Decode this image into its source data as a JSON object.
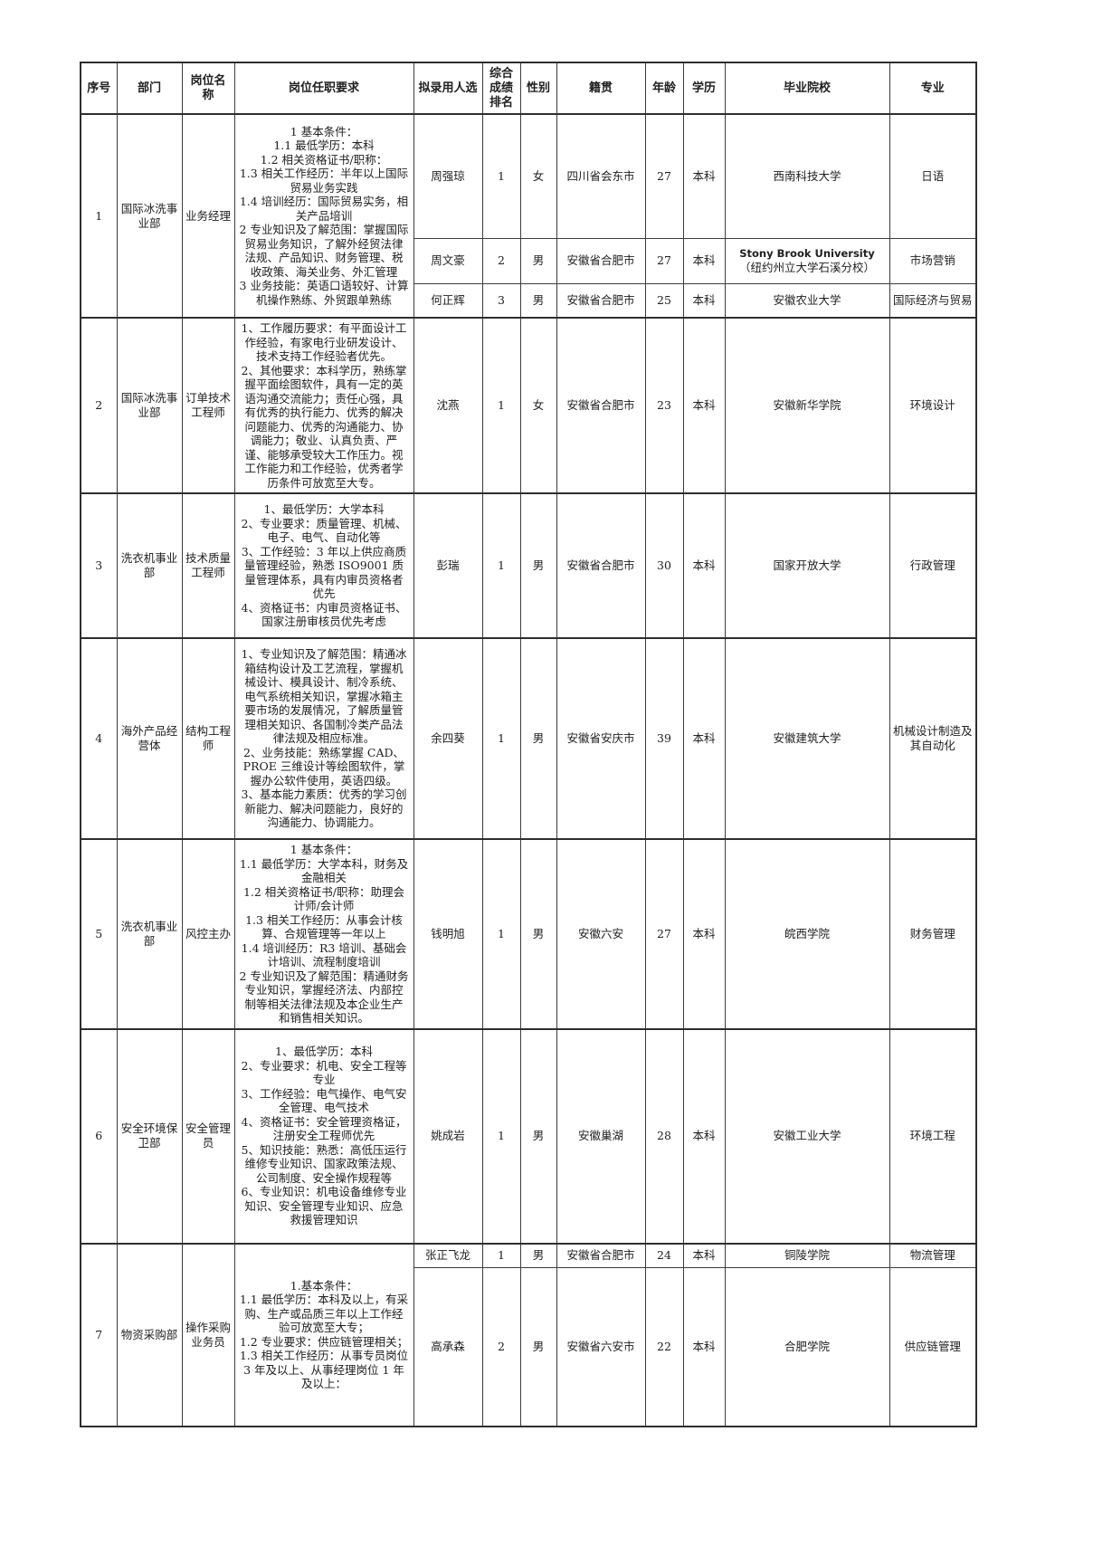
{
  "table": {
    "headers": [
      "序号",
      "部门",
      "岗位名称",
      "岗位任职要求",
      "拟录用人选",
      "综合成绩排名",
      "性别",
      "籍贯",
      "年龄",
      "学历",
      "毕业院校",
      "专业"
    ],
    "rows": [
      {
        "no": "1",
        "department": "国际冰洗事业部",
        "position": "业务经理",
        "requirements": "1 基本条件：\n1.1 最低学历：本科\n1.2 相关资格证书/职称：\n1.3 相关工作经历：半年以上国际贸易业务实践\n1.4 培训经历：国际贸易实务，相关产品培训\n2 专业知识及了解范围：掌握国际贸易业务知识，了解外经贸法律法规、产品知识、财务管理、税收政策、海关业务、外汇管理\n3 业务技能：英语口语较好、计算机操作熟练、外贸跟单熟练",
        "candidates": [
          {
            "name": "周强琼",
            "rank": "1",
            "gender": "女",
            "hometown": "四川省会东市",
            "age": "27",
            "degree": "本科",
            "school": "西南科技大学",
            "major": "日语"
          },
          {
            "name": "周文豪",
            "rank": "2",
            "gender": "男",
            "hometown": "安徽省合肥市",
            "age": "27",
            "degree": "本科",
            "school": "Stony Brook University\n（纽约州立大学石溪分校）",
            "major": "市场营销"
          },
          {
            "name": "何正辉",
            "rank": "3",
            "gender": "男",
            "hometown": "安徽省合肥市",
            "age": "25",
            "degree": "本科",
            "school": "安徽农业大学",
            "major": "国际经济与贸易"
          }
        ]
      },
      {
        "no": "2",
        "department": "国际冰洗事业部",
        "position": "订单技术工程师",
        "requirements": "1、工作履历要求：有平面设计工作经验，有家电行业研发设计、技术支持工作经验者优先。\n2、其他要求：本科学历，熟练掌握平面绘图软件，具有一定的英语沟通交流能力；责任心强，具有优秀的执行能力、优秀的解决问题能力、优秀的沟通能力、协调能力；敬业、认真负责、严谨、能够承受较大工作压力。视工作能力和工作经验，优秀者学历条件可放宽至大专。",
        "candidates": [
          {
            "name": "沈燕",
            "rank": "1",
            "gender": "女",
            "hometown": "安徽省合肥市",
            "age": "23",
            "degree": "本科",
            "school": "安徽新华学院",
            "major": "环境设计"
          }
        ]
      },
      {
        "no": "3",
        "department": "洗衣机事业部",
        "position": "技术质量工程师",
        "requirements": "1、最低学历：大学本科\n2、专业要求：质量管理、机械、电子、电气、自动化等\n3、工作经验：3 年以上供应商质量管理经验，熟悉 ISO9001 质量管理体系，具有内审员资格者优先\n4、资格证书：内审员资格证书、国家注册审核员优先考虑",
        "candidates": [
          {
            "name": "彭瑞",
            "rank": "1",
            "gender": "男",
            "hometown": "安徽省合肥市",
            "age": "30",
            "degree": "本科",
            "school": "国家开放大学",
            "major": "行政管理"
          }
        ]
      },
      {
        "no": "4",
        "department": "海外产品经营体",
        "position": "结构工程师",
        "requirements": "1、专业知识及了解范围：精通冰箱结构设计及工艺流程，掌握机械设计、模具设计、制冷系统、电气系统相关知识，掌握冰箱主要市场的发展情况，了解质量管理相关知识、各国制冷类产品法律法规及相应标准。\n2、业务技能：熟练掌握 CAD、PROE 三维设计等绘图软件，掌握办公软件使用，英语四级。\n3、基本能力素质：优秀的学习创新能力、解决问题能力，良好的沟通能力、协调能力。",
        "candidates": [
          {
            "name": "余四葵",
            "rank": "1",
            "gender": "男",
            "hometown": "安徽省安庆市",
            "age": "39",
            "degree": "本科",
            "school": "安徽建筑大学",
            "major": "机械设计制造及其自动化"
          }
        ]
      },
      {
        "no": "5",
        "department": "洗衣机事业部",
        "position": "风控主办",
        "requirements": "1 基本条件：\n1.1 最低学历：大学本科，财务及金融相关\n1.2 相关资格证书/职称：助理会计师/会计师\n1.3 相关工作经历：从事会计核算、合规管理等一年以上\n1.4 培训经历：R3 培训、基础会计培训、流程制度培训\n2 专业知识及了解范围：精通财务专业知识，掌握经济法、内部控制等相关法律法规及本企业生产和销售相关知识。",
        "candidates": [
          {
            "name": "钱明旭",
            "rank": "1",
            "gender": "男",
            "hometown": "安徽六安",
            "age": "27",
            "degree": "本科",
            "school": "皖西学院",
            "major": "财务管理"
          }
        ]
      },
      {
        "no": "6",
        "department": "安全环境保卫部",
        "position": "安全管理员",
        "requirements": "1、最低学历：本科\n2、专业要求：机电、安全工程等专业\n3、工作经验：电气操作、电气安全管理、电气技术\n4、资格证书：安全管理资格证，注册安全工程师优先\n5、知识技能：熟悉：高低压运行维修专业知识、国家政策法规、公司制度、安全操作规程等\n6、专业知识：机电设备维修专业知识、安全管理专业知识、应急救援管理知识",
        "candidates": [
          {
            "name": "姚成岩",
            "rank": "1",
            "gender": "男",
            "hometown": "安徽巢湖",
            "age": "28",
            "degree": "本科",
            "school": "安徽工业大学",
            "major": "环境工程"
          }
        ]
      },
      {
        "no": "7",
        "department": "物资采购部",
        "position": "操作采购业务员",
        "requirements": "1.基本条件：\n1.1 最低学历：本科及以上，有采购、生产或品质三年以上工作经验可放宽至大专；\n1.2 专业要求：供应链管理相关；\n1.3 相关工作经历：从事专员岗位 3 年及以上、从事经理岗位 1 年及以上：",
        "candidates": [
          {
            "name": "张正飞龙",
            "rank": "1",
            "gender": "男",
            "hometown": "安徽省合肥市",
            "age": "24",
            "degree": "本科",
            "school": "铜陵学院",
            "major": "物流管理"
          },
          {
            "name": "高承森",
            "rank": "2",
            "gender": "男",
            "hometown": "安徽省六安市",
            "age": "22",
            "degree": "本科",
            "school": "合肥学院",
            "major": "供应链管理"
          }
        ]
      }
    ]
  }
}
